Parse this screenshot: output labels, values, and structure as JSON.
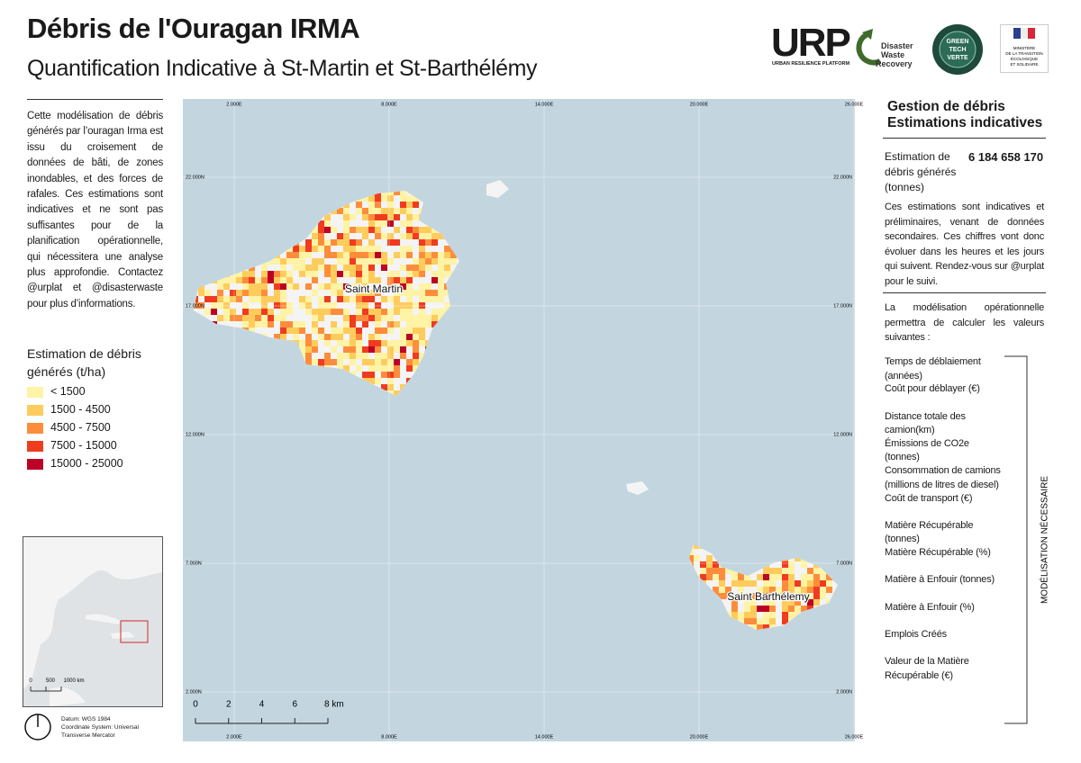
{
  "header": {
    "title": "Débris de l'Ouragan IRMA",
    "subtitle": "Quantification Indicative à St-Martin et St-Barthélémy"
  },
  "logos": {
    "urp": "URP",
    "urp_caption": "URBAN RESILIENCE PLATFORM",
    "dwr": [
      "Disaster",
      "Waste",
      "Recovery"
    ],
    "green": [
      "GREEN",
      "TECH",
      "VERTE"
    ],
    "ministry": [
      "MINISTÈRE",
      "DE LA TRANSITION",
      "ÉCOLOGIQUE",
      "ET SOLIDAIRE"
    ]
  },
  "description": "Cette modélisation de débris générés par l’ouragan Irma est issu du croisement de données de bâti, de zones inondables, et des forces de rafales. Ces estimations sont indicatives et ne sont pas suffisantes pour de la planification opérationnelle, qui nécessitera une analyse plus approfondie. Contactez @urplat et @disasterwaste pour plus d’informations.",
  "legend": {
    "title": "Estimation de débris générés (t/ha)",
    "items": [
      {
        "label": "< 1500",
        "color": "#fff3a6"
      },
      {
        "label": "1500 - 4500",
        "color": "#fecc5c"
      },
      {
        "label": "4500 - 7500",
        "color": "#fd8d3c"
      },
      {
        "label": "7500 - 15000",
        "color": "#f03b20"
      },
      {
        "label": "15000 - 25000",
        "color": "#bd0026"
      }
    ]
  },
  "map": {
    "x_labels": [
      "2.000E",
      "8.000E",
      "14.000E",
      "20.000E",
      "26.000E"
    ],
    "y_labels": [
      "22.000N",
      "17.000N",
      "12.000N",
      "7.000N",
      "2.000N"
    ],
    "places": [
      "Saint Martin",
      "Saint Barthélemy"
    ],
    "scale": [
      "0",
      "2",
      "4",
      "6",
      "8 km"
    ]
  },
  "inset": {
    "scale": [
      "0",
      "500",
      "1000 km"
    ]
  },
  "datum": [
    "Datum: WGS 1984",
    "Coordinate System: Universal Transverse Mercator"
  ],
  "panel": {
    "title": [
      "Gestion de débris",
      "Estimations indicatives"
    ],
    "estimate_label": "Estimation de débris générés (tonnes)",
    "estimate_value": "6 184 658 170",
    "note": "Ces estimations sont indicatives et préliminaires, venant de données secondaires. Ces chiffres vont donc évoluer dans les heures et les jours qui suivent. Rendez-vous sur @urplat pour le suivi.",
    "intro": "La modélisation opérationnelle permettra de calculer les valeurs suivantes :",
    "items": [
      "Temps de déblaiement (années)",
      "Coût pour déblayer (€)",
      "Distance totale des camion(km)",
      "Émissions de CO2e (tonnes)",
      "Consommation de camions (millions de litres de diesel)",
      "Coût de transport (€)",
      "Matière Récupérable (tonnes)",
      "Matière Récupérable (%)",
      "Matière à Enfouir (tonnes)",
      "Matière à Enfouir (%)",
      "Emplois Créés",
      "Valeur de la Matière Récupérable (€)"
    ],
    "bracket_label": "MODÉLISATION NÉCESSAIRE"
  }
}
